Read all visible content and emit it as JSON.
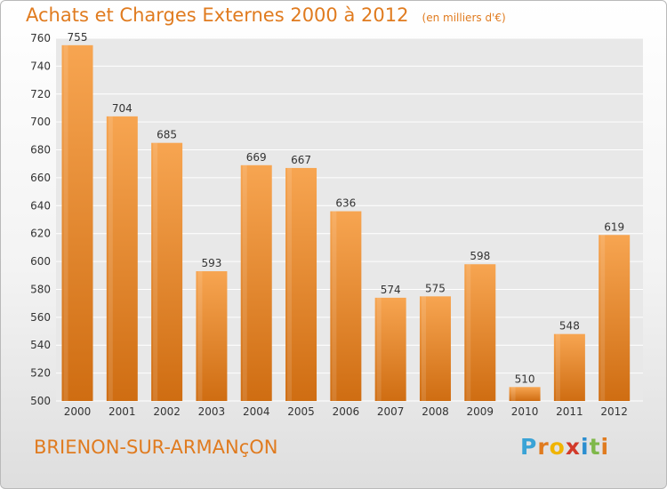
{
  "title": "Achats et Charges Externes 2000 à 2012",
  "subtitle": "(en milliers d'€)",
  "place": "BRIENON-SUR-ARMANçON",
  "logo": {
    "letters": [
      "P",
      "r",
      "o",
      "x",
      "i",
      "t",
      "i"
    ],
    "colors": [
      "#3aa3d6",
      "#e07b1f",
      "#f0b400",
      "#d23a2a",
      "#2a8ed0",
      "#7fb84a",
      "#e07b1f"
    ]
  },
  "colors": {
    "accent": "#e07b1f",
    "bar_top": "#f7a551",
    "bar_bottom": "#cf6d12",
    "plot_bg": "#e8e8e8",
    "grid": "#ffffff"
  },
  "chart_data": {
    "type": "bar",
    "categories": [
      "2000",
      "2001",
      "2002",
      "2003",
      "2004",
      "2005",
      "2006",
      "2007",
      "2008",
      "2009",
      "2010",
      "2011",
      "2012"
    ],
    "values": [
      755,
      704,
      685,
      593,
      669,
      667,
      636,
      574,
      575,
      598,
      510,
      548,
      619
    ],
    "ylim": [
      500,
      760
    ],
    "yticks": [
      500,
      520,
      540,
      560,
      580,
      600,
      620,
      640,
      660,
      680,
      700,
      720,
      740,
      760
    ],
    "grid": true,
    "data_labels": true
  }
}
